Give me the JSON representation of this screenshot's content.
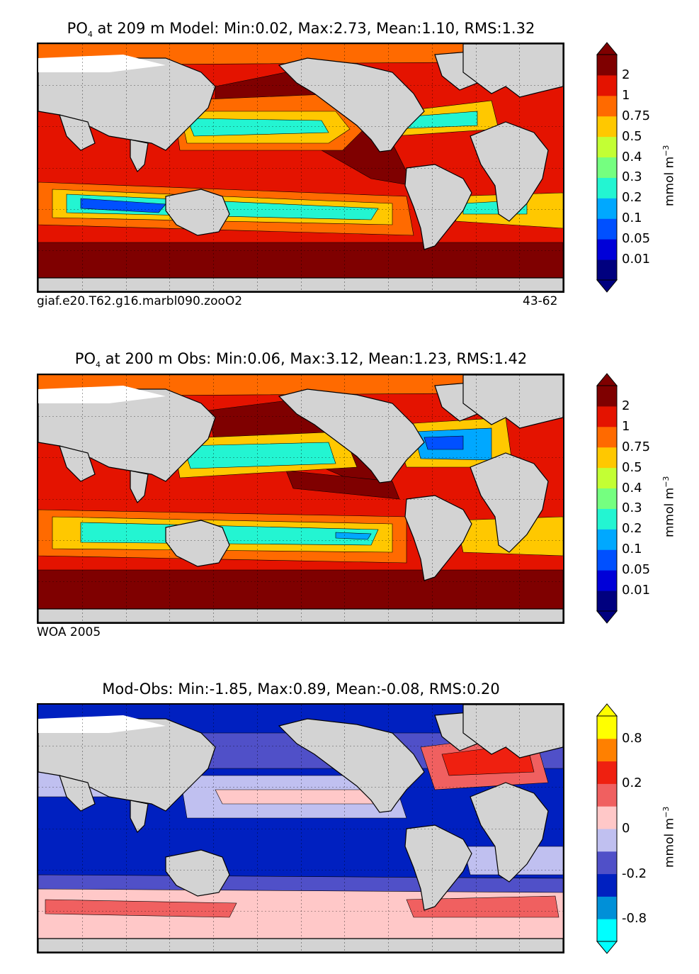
{
  "chart_data": [
    {
      "type": "heatmap",
      "title_parts": {
        "var": "PO",
        "sub": "4",
        "rest": " at 209 m Model: Min:0.02, Max:2.73, Mean:1.10, RMS:1.32"
      },
      "stats": {
        "depth_m": 209,
        "source": "Model",
        "min": 0.02,
        "max": 2.73,
        "mean": 1.1,
        "rms": 1.32
      },
      "left_note": "giaf.e20.T62.g16.marbl090.zooO2",
      "right_note": "43-62",
      "colorbar": {
        "levels": [
          "0.01",
          "0.05",
          "0.1",
          "0.2",
          "0.3",
          "0.4",
          "0.5",
          "0.75",
          "1",
          "2"
        ],
        "colors": [
          "#00007f",
          "#0000d8",
          "#0050ff",
          "#00a8ff",
          "#23f5d2",
          "#75ff80",
          "#c3ff34",
          "#ffc800",
          "#ff6a00",
          "#e41300",
          "#7f0000"
        ],
        "unit_base": "mmol m",
        "unit_exp": "−3"
      },
      "pattern": "model"
    },
    {
      "type": "heatmap",
      "title_parts": {
        "var": "PO",
        "sub": "4",
        "rest": " at 200 m Obs: Min:0.06, Max:3.12, Mean:1.23, RMS:1.42"
      },
      "stats": {
        "depth_m": 200,
        "source": "Obs",
        "min": 0.06,
        "max": 3.12,
        "mean": 1.23,
        "rms": 1.42
      },
      "left_note": "WOA 2005",
      "right_note": "",
      "colorbar": {
        "levels": [
          "0.01",
          "0.05",
          "0.1",
          "0.2",
          "0.3",
          "0.4",
          "0.5",
          "0.75",
          "1",
          "2"
        ],
        "colors": [
          "#00007f",
          "#0000d8",
          "#0050ff",
          "#00a8ff",
          "#23f5d2",
          "#75ff80",
          "#c3ff34",
          "#ffc800",
          "#ff6a00",
          "#e41300",
          "#7f0000"
        ],
        "unit_base": "mmol m",
        "unit_exp": "−3"
      },
      "pattern": "obs"
    },
    {
      "type": "heatmap",
      "title_parts": {
        "var": "",
        "sub": "",
        "rest": "Mod-Obs: Min:-1.85, Max:0.89, Mean:-0.08, RMS:0.20"
      },
      "stats": {
        "min": -1.85,
        "max": 0.89,
        "mean": -0.08,
        "rms": 0.2
      },
      "left_note": "",
      "right_note": "",
      "colorbar": {
        "levels": [
          "-0.8",
          "",
          "-0.2",
          "",
          "0",
          "",
          "0.2",
          "",
          "0.8"
        ],
        "colors": [
          "#00ffff",
          "#0090d8",
          "#0020c0",
          "#5050c8",
          "#c0c0f0",
          "#ffc8c8",
          "#f06060",
          "#ef2010",
          "#ff8000",
          "#ffff00"
        ],
        "unit_base": "mmol m",
        "unit_exp": "−3"
      },
      "pattern": "diff"
    }
  ]
}
